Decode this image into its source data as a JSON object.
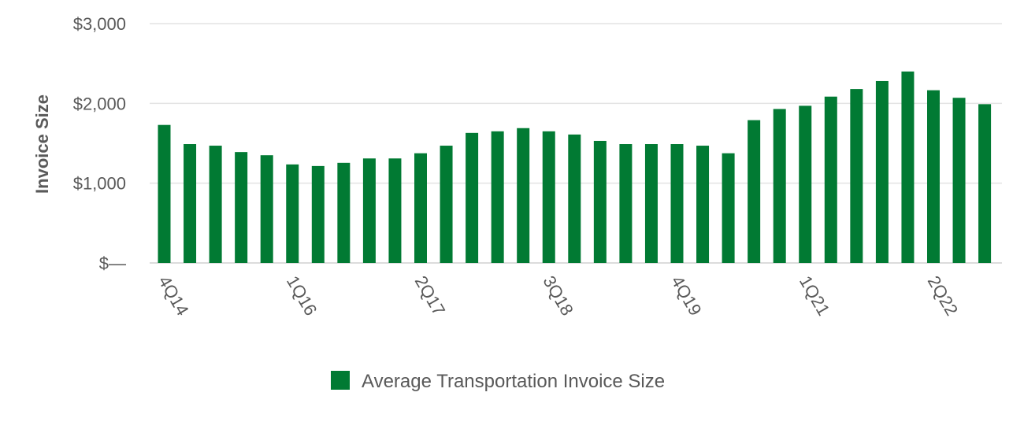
{
  "chart_data": {
    "type": "bar",
    "title": "",
    "xlabel": "",
    "ylabel": "Invoice Size",
    "ylim": [
      0,
      3000
    ],
    "y_ticks": [
      0,
      1000,
      2000,
      3000
    ],
    "y_tick_labels": [
      "$—",
      "$1,000",
      "$2,000",
      "$3,000"
    ],
    "grid": true,
    "legend_position": "bottom",
    "categories": [
      "4Q14",
      "1Q15",
      "2Q15",
      "3Q15",
      "4Q15",
      "1Q16",
      "2Q16",
      "3Q16",
      "4Q16",
      "1Q17",
      "2Q17",
      "3Q17",
      "4Q17",
      "1Q18",
      "2Q18",
      "3Q18",
      "4Q18",
      "1Q19",
      "2Q19",
      "3Q19",
      "4Q19",
      "1Q20",
      "2Q20",
      "3Q20",
      "4Q20",
      "1Q21",
      "2Q21",
      "3Q21",
      "4Q21",
      "1Q22",
      "2Q22",
      "3Q22",
      "4Q22"
    ],
    "x_tick_labels_shown": [
      "4Q14",
      "1Q16",
      "2Q17",
      "3Q18",
      "4Q19",
      "1Q21",
      "2Q22"
    ],
    "series": [
      {
        "name": "Average Transportation Invoice Size",
        "color": "#017a33",
        "values": [
          1730,
          1490,
          1470,
          1390,
          1350,
          1235,
          1215,
          1255,
          1310,
          1310,
          1375,
          1470,
          1630,
          1650,
          1690,
          1650,
          1610,
          1530,
          1490,
          1490,
          1490,
          1470,
          1375,
          1790,
          1930,
          1970,
          2085,
          2180,
          2280,
          2400,
          2165,
          2070,
          1990
        ]
      }
    ]
  }
}
